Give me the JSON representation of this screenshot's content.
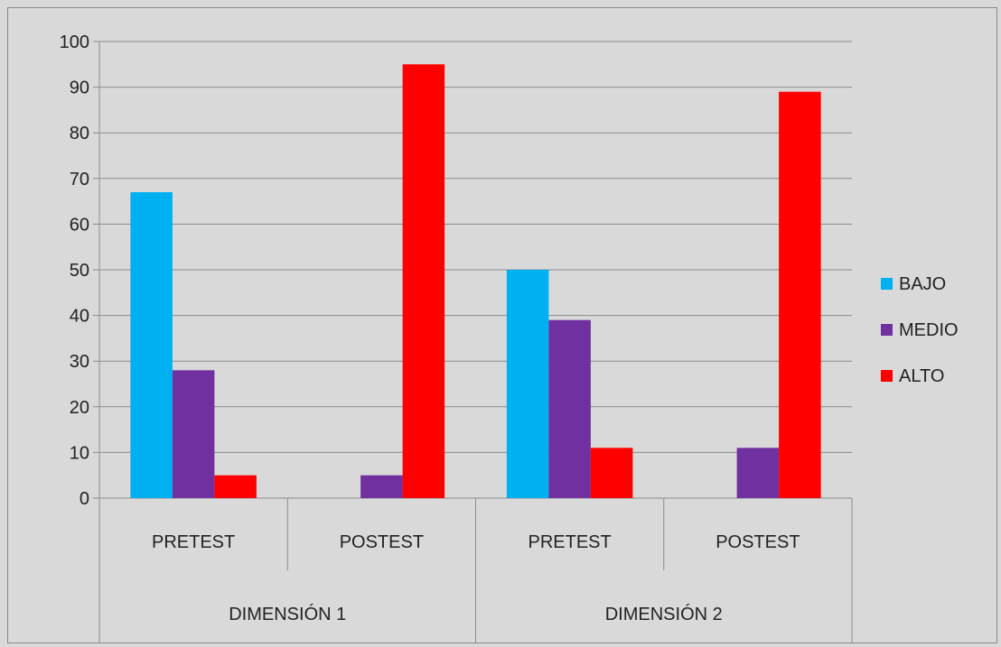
{
  "chart_data": {
    "type": "bar",
    "categories": [
      "PRETEST",
      "POSTEST",
      "PRETEST",
      "POSTEST"
    ],
    "groups": [
      "DIMENSIÓN 1",
      "DIMENSIÓN 2"
    ],
    "series": [
      {
        "name": "BAJO",
        "color": "#00b0f0",
        "values": [
          67,
          0,
          50,
          0
        ]
      },
      {
        "name": "MEDIO",
        "color": "#7030a0",
        "values": [
          28,
          5,
          39,
          11
        ]
      },
      {
        "name": "ALTO",
        "color": "#ff0000",
        "values": [
          5,
          95,
          11,
          89
        ]
      }
    ],
    "title": "",
    "xlabel": "",
    "ylabel": "",
    "ylim": [
      0,
      100
    ],
    "yticks": [
      0,
      10,
      20,
      30,
      40,
      50,
      60,
      70,
      80,
      90,
      100
    ],
    "grid": true,
    "legend": "right"
  }
}
